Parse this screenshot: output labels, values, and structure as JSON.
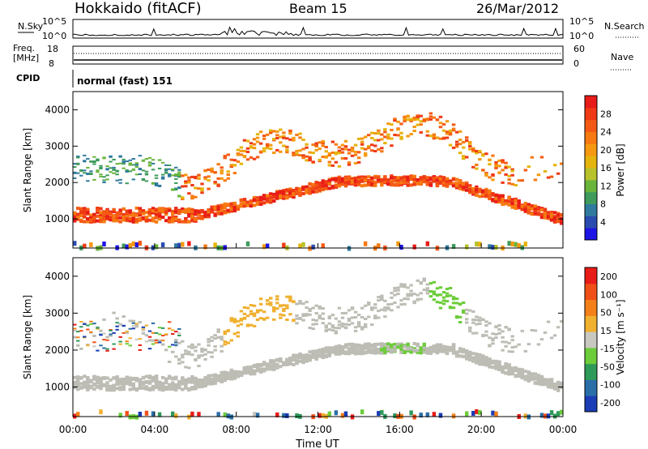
{
  "header": {
    "site": "Hokkaido (fitACF)",
    "beam": "Beam 15",
    "date": "26/Mar/2012"
  },
  "top_panels": {
    "nsky_label": "N.Sky",
    "nsearch_label": "N.Search",
    "nsky_ticks": [
      "10^5",
      "10^0"
    ],
    "nsearch_ticks": [
      "10^5",
      "10^0"
    ],
    "freq_label": "Freq.",
    "freq_unit": "[MHz]",
    "freq_ticks": [
      "18",
      "8"
    ],
    "nave_label": "Nave",
    "nave_ticks": [
      "60",
      "0"
    ],
    "cpid_label": "CPID",
    "cpid_value": "normal (fast) 151"
  },
  "chart_data": [
    {
      "type": "heatmap",
      "ylabel": "Slant Range [km]",
      "y_ticks": [
        "1000",
        "2000",
        "3000",
        "4000"
      ],
      "ylim": [
        200,
        4500
      ],
      "colorbar": {
        "label": "Power [dB]",
        "ticks": [
          "4",
          "8",
          "12",
          "16",
          "20",
          "24",
          "28"
        ],
        "colors": [
          "#1d14e6",
          "#2a4bb0",
          "#2f7a9e",
          "#3e9b5c",
          "#6ab43c",
          "#b8c22a",
          "#e5b40c",
          "#f59a10",
          "#f77a12",
          "#f55a14",
          "#ef3a16",
          "#e81c18"
        ]
      }
    },
    {
      "type": "heatmap",
      "ylabel": "Slant Range [km]",
      "y_ticks": [
        "1000",
        "2000",
        "3000",
        "4000"
      ],
      "ylim": [
        200,
        4500
      ],
      "colorbar": {
        "label": "Velocity [m s⁻¹]",
        "ticks": [
          "200",
          "100",
          "50",
          "15",
          "-15",
          "-50",
          "-100",
          "-200"
        ],
        "colors": [
          "#1a3cb4",
          "#2a6ea8",
          "#2e9a5a",
          "#6ccc3a",
          "#c8c8c0",
          "#f0b030",
          "#f38018",
          "#f05018",
          "#e81c18"
        ]
      }
    }
  ],
  "x_axis": {
    "label": "Time UT",
    "ticks": [
      "00:00",
      "04:00",
      "08:00",
      "12:00",
      "16:00",
      "20:00",
      "00:00"
    ]
  },
  "colors": {
    "ground_scatter": "#bdbdb5"
  }
}
